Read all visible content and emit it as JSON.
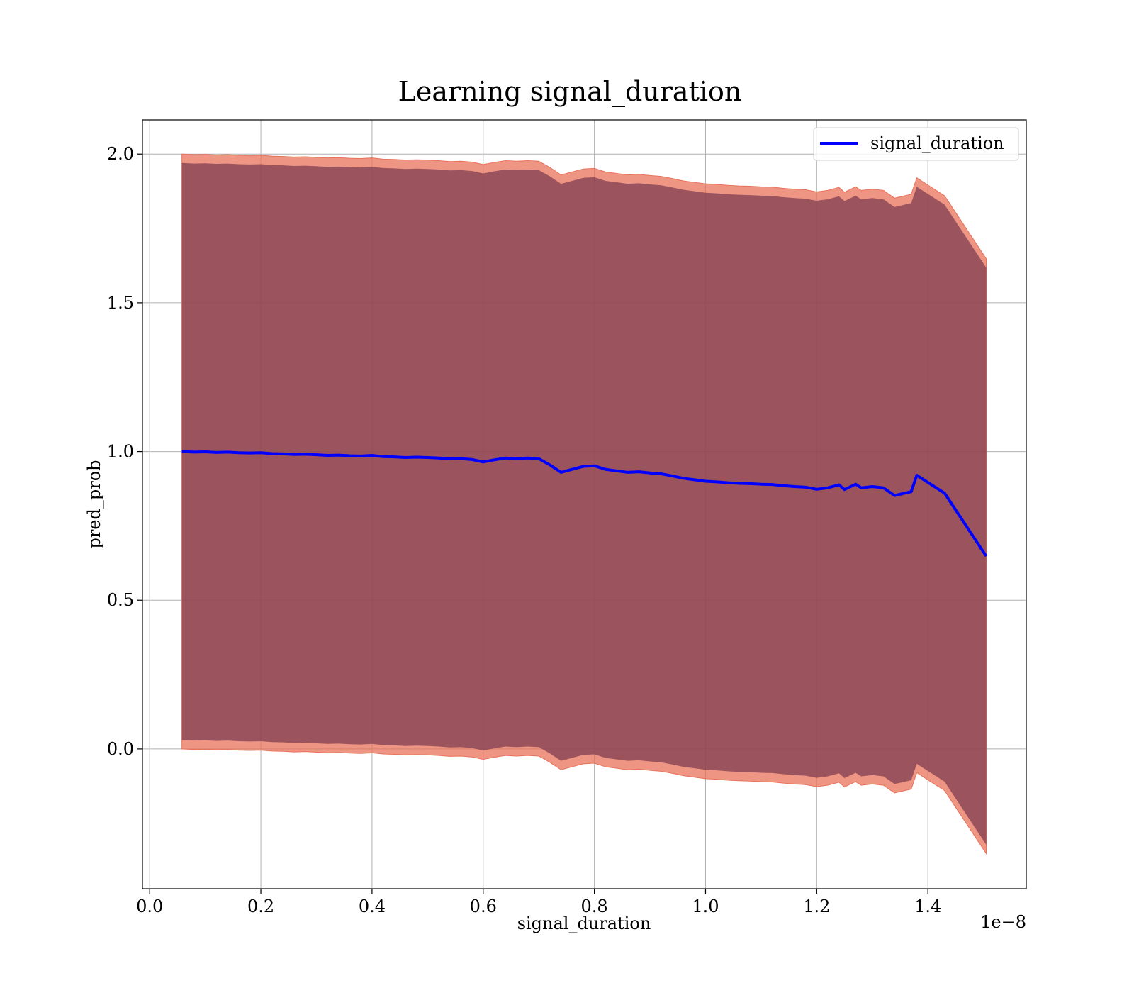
{
  "chart_data": {
    "type": "line",
    "title": "Learning signal_duration",
    "xlabel": "signal_duration",
    "ylabel": "pred_prob",
    "x_offset_label": "1e−8",
    "x_scale_factor": 1e-08,
    "xlim": [
      -0.013,
      1.577
    ],
    "ylim": [
      -0.47,
      2.115
    ],
    "grid": true,
    "legend_position": "top-right",
    "x_ticks": [
      0.0,
      0.2,
      0.4,
      0.6,
      0.8,
      1.0,
      1.2,
      1.4
    ],
    "x_tick_labels": [
      "0.0",
      "0.2",
      "0.4",
      "0.6",
      "0.8",
      "1.0",
      "1.2",
      "1.4"
    ],
    "y_ticks": [
      0.0,
      0.5,
      1.0,
      1.5,
      2.0
    ],
    "y_tick_labels": [
      "0.0",
      "0.5",
      "1.0",
      "1.5",
      "2.0"
    ],
    "colors": {
      "line": "#0000ff",
      "band_outer": "#e8725a",
      "band_inner": "#7b3a4f",
      "grid": "#b0b0b0"
    },
    "series": [
      {
        "name": "signal_duration",
        "x": [
          0.058,
          0.08,
          0.1,
          0.12,
          0.14,
          0.16,
          0.18,
          0.2,
          0.22,
          0.24,
          0.26,
          0.28,
          0.3,
          0.32,
          0.34,
          0.36,
          0.38,
          0.4,
          0.42,
          0.44,
          0.46,
          0.48,
          0.5,
          0.52,
          0.54,
          0.56,
          0.58,
          0.6,
          0.62,
          0.64,
          0.66,
          0.68,
          0.7,
          0.72,
          0.74,
          0.76,
          0.78,
          0.8,
          0.82,
          0.84,
          0.86,
          0.88,
          0.9,
          0.92,
          0.94,
          0.96,
          0.98,
          1.0,
          1.02,
          1.04,
          1.06,
          1.08,
          1.1,
          1.12,
          1.14,
          1.16,
          1.18,
          1.2,
          1.22,
          1.24,
          1.25,
          1.27,
          1.28,
          1.3,
          1.32,
          1.34,
          1.37,
          1.38,
          1.43,
          1.505
        ],
        "y": [
          1.0,
          0.998,
          0.999,
          0.997,
          0.998,
          0.996,
          0.995,
          0.996,
          0.993,
          0.992,
          0.99,
          0.991,
          0.989,
          0.987,
          0.988,
          0.986,
          0.985,
          0.987,
          0.983,
          0.982,
          0.98,
          0.981,
          0.98,
          0.978,
          0.975,
          0.976,
          0.973,
          0.965,
          0.972,
          0.978,
          0.976,
          0.978,
          0.976,
          0.955,
          0.93,
          0.94,
          0.95,
          0.952,
          0.94,
          0.935,
          0.93,
          0.932,
          0.928,
          0.925,
          0.918,
          0.91,
          0.905,
          0.9,
          0.898,
          0.895,
          0.893,
          0.892,
          0.89,
          0.889,
          0.885,
          0.882,
          0.88,
          0.873,
          0.878,
          0.888,
          0.872,
          0.89,
          0.878,
          0.882,
          0.878,
          0.852,
          0.865,
          0.92,
          0.86,
          0.648
        ],
        "band_outer_upper": [
          2.0,
          1.998,
          1.999,
          1.997,
          1.998,
          1.996,
          1.995,
          1.996,
          1.993,
          1.992,
          1.99,
          1.991,
          1.989,
          1.987,
          1.988,
          1.986,
          1.985,
          1.987,
          1.983,
          1.982,
          1.98,
          1.981,
          1.98,
          1.978,
          1.975,
          1.976,
          1.973,
          1.965,
          1.972,
          1.978,
          1.976,
          1.978,
          1.976,
          1.955,
          1.93,
          1.94,
          1.95,
          1.952,
          1.94,
          1.935,
          1.93,
          1.932,
          1.928,
          1.925,
          1.918,
          1.91,
          1.905,
          1.9,
          1.898,
          1.895,
          1.893,
          1.892,
          1.89,
          1.889,
          1.885,
          1.882,
          1.88,
          1.873,
          1.878,
          1.888,
          1.872,
          1.89,
          1.878,
          1.882,
          1.878,
          1.852,
          1.865,
          1.92,
          1.86,
          1.648
        ],
        "band_outer_lower": [
          0.0,
          -0.002,
          -0.001,
          -0.003,
          -0.002,
          -0.004,
          -0.005,
          -0.004,
          -0.007,
          -0.008,
          -0.01,
          -0.009,
          -0.011,
          -0.013,
          -0.012,
          -0.014,
          -0.015,
          -0.013,
          -0.017,
          -0.018,
          -0.02,
          -0.019,
          -0.02,
          -0.022,
          -0.025,
          -0.024,
          -0.027,
          -0.035,
          -0.028,
          -0.022,
          -0.024,
          -0.022,
          -0.024,
          -0.045,
          -0.07,
          -0.06,
          -0.05,
          -0.048,
          -0.06,
          -0.065,
          -0.07,
          -0.068,
          -0.072,
          -0.075,
          -0.082,
          -0.09,
          -0.095,
          -0.1,
          -0.102,
          -0.105,
          -0.107,
          -0.108,
          -0.11,
          -0.111,
          -0.115,
          -0.118,
          -0.12,
          -0.127,
          -0.122,
          -0.112,
          -0.128,
          -0.11,
          -0.122,
          -0.118,
          -0.122,
          -0.148,
          -0.135,
          -0.08,
          -0.14,
          -0.352
        ],
        "band_inner_upper": [
          1.97,
          1.968,
          1.969,
          1.967,
          1.968,
          1.966,
          1.965,
          1.966,
          1.963,
          1.962,
          1.96,
          1.961,
          1.959,
          1.957,
          1.958,
          1.956,
          1.955,
          1.957,
          1.953,
          1.952,
          1.95,
          1.951,
          1.95,
          1.948,
          1.945,
          1.946,
          1.943,
          1.935,
          1.942,
          1.948,
          1.946,
          1.948,
          1.946,
          1.925,
          1.9,
          1.91,
          1.92,
          1.922,
          1.91,
          1.905,
          1.9,
          1.902,
          1.898,
          1.895,
          1.888,
          1.88,
          1.875,
          1.87,
          1.868,
          1.865,
          1.863,
          1.862,
          1.86,
          1.859,
          1.855,
          1.852,
          1.85,
          1.843,
          1.848,
          1.858,
          1.842,
          1.86,
          1.848,
          1.852,
          1.848,
          1.822,
          1.835,
          1.89,
          1.83,
          1.618
        ],
        "band_inner_lower": [
          0.03,
          0.028,
          0.029,
          0.027,
          0.028,
          0.026,
          0.025,
          0.026,
          0.023,
          0.022,
          0.02,
          0.021,
          0.019,
          0.017,
          0.018,
          0.016,
          0.015,
          0.017,
          0.013,
          0.012,
          0.01,
          0.011,
          0.01,
          0.008,
          0.005,
          0.006,
          0.003,
          -0.005,
          0.002,
          0.008,
          0.006,
          0.008,
          0.006,
          -0.015,
          -0.04,
          -0.03,
          -0.02,
          -0.018,
          -0.03,
          -0.035,
          -0.04,
          -0.038,
          -0.042,
          -0.045,
          -0.052,
          -0.06,
          -0.065,
          -0.07,
          -0.072,
          -0.075,
          -0.077,
          -0.078,
          -0.08,
          -0.081,
          -0.085,
          -0.088,
          -0.09,
          -0.097,
          -0.092,
          -0.082,
          -0.098,
          -0.08,
          -0.092,
          -0.088,
          -0.092,
          -0.118,
          -0.105,
          -0.05,
          -0.11,
          -0.322
        ]
      }
    ]
  }
}
